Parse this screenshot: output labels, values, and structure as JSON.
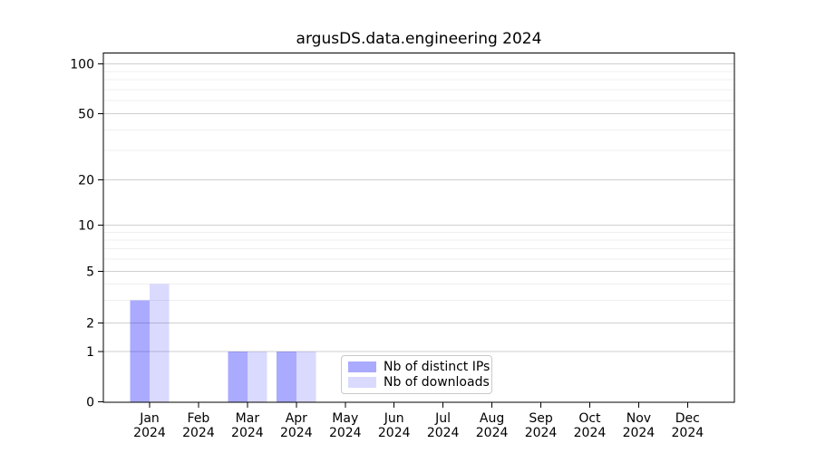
{
  "chart_data": {
    "type": "bar",
    "title": "argusDS.data.engineering 2024",
    "categories": [
      "Jan",
      "Feb",
      "Mar",
      "Apr",
      "May",
      "Jun",
      "Jul",
      "Aug",
      "Sep",
      "Oct",
      "Nov",
      "Dec"
    ],
    "x_axis": {
      "tick_years": [
        "2024",
        "2024",
        "2024",
        "2024",
        "2024",
        "2024",
        "2024",
        "2024",
        "2024",
        "2024",
        "2024",
        "2024"
      ]
    },
    "y_axis": {
      "scale": "symlog",
      "ticks": [
        0,
        1,
        2,
        5,
        10,
        20,
        50,
        100
      ],
      "minor_gridlines": [
        3,
        4,
        6,
        7,
        8,
        9,
        30,
        40,
        60,
        70,
        80,
        90
      ],
      "ylim": [
        0,
        110
      ]
    },
    "series": [
      {
        "name": "Nb of distinct IPs",
        "color": "#0000ff",
        "alpha": 0.335,
        "values": [
          3,
          0,
          1,
          1,
          0,
          0,
          0,
          0,
          0,
          0,
          0,
          0
        ]
      },
      {
        "name": "Nb of downloads",
        "color": "#0000ff",
        "alpha": 0.145,
        "values": [
          4,
          0,
          1,
          1,
          0,
          0,
          0,
          0,
          0,
          0,
          0,
          0
        ]
      }
    ],
    "legend": {
      "position": "lower center"
    },
    "grid": true,
    "colors": {
      "major_grid": "#cfcfcf",
      "minor_grid": "#efefef",
      "spine": "#000000",
      "text": "#000000"
    }
  }
}
